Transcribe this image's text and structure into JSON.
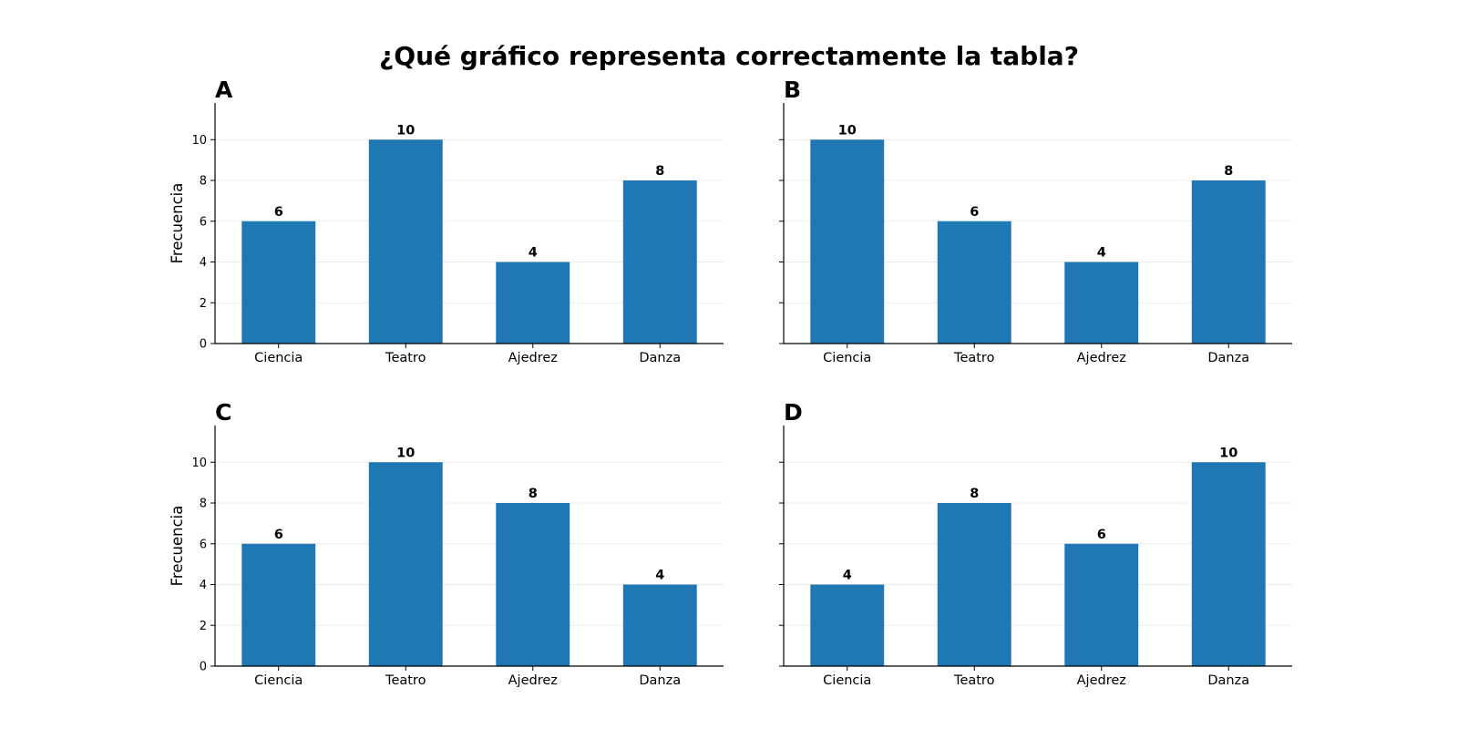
{
  "title": "¿Qué gráfico representa correctamente la tabla?",
  "colors": {
    "bar": "#1f77b4"
  },
  "chart_data": [
    {
      "type": "bar",
      "panel": "A",
      "categories": [
        "Ciencia",
        "Teatro",
        "Ajedrez",
        "Danza"
      ],
      "values": [
        6,
        10,
        4,
        8
      ],
      "ylabel": "Frecuencia",
      "ylim": [
        0,
        11.8
      ],
      "yticks": [
        0,
        2,
        4,
        6,
        8,
        10
      ],
      "grid": "horizontal",
      "show_ytick_labels": true
    },
    {
      "type": "bar",
      "panel": "B",
      "categories": [
        "Ciencia",
        "Teatro",
        "Ajedrez",
        "Danza"
      ],
      "values": [
        10,
        6,
        4,
        8
      ],
      "ylabel": "",
      "ylim": [
        0,
        11.8
      ],
      "yticks": [
        0,
        2,
        4,
        6,
        8,
        10
      ],
      "grid": "horizontal",
      "show_ytick_labels": false
    },
    {
      "type": "bar",
      "panel": "C",
      "categories": [
        "Ciencia",
        "Teatro",
        "Ajedrez",
        "Danza"
      ],
      "values": [
        6,
        10,
        8,
        4
      ],
      "ylabel": "Frecuencia",
      "ylim": [
        0,
        11.8
      ],
      "yticks": [
        0,
        2,
        4,
        6,
        8,
        10
      ],
      "grid": "horizontal",
      "show_ytick_labels": true
    },
    {
      "type": "bar",
      "panel": "D",
      "categories": [
        "Ciencia",
        "Teatro",
        "Ajedrez",
        "Danza"
      ],
      "values": [
        4,
        8,
        6,
        10
      ],
      "ylabel": "",
      "ylim": [
        0,
        11.8
      ],
      "yticks": [
        0,
        2,
        4,
        6,
        8,
        10
      ],
      "grid": "horizontal",
      "show_ytick_labels": false
    }
  ]
}
